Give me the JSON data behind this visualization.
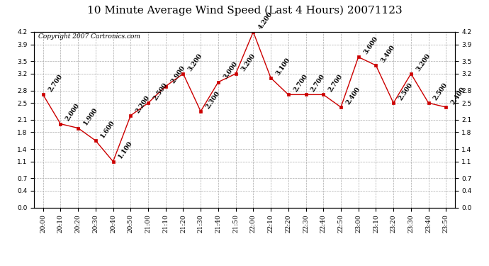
{
  "title": "10 Minute Average Wind Speed (Last 4 Hours) 20071123",
  "copyright": "Copyright 2007 Cartronics.com",
  "times": [
    "20:00",
    "20:10",
    "20:20",
    "20:30",
    "20:40",
    "20:50",
    "21:00",
    "21:10",
    "21:20",
    "21:30",
    "21:40",
    "21:50",
    "22:00",
    "22:10",
    "22:20",
    "22:30",
    "22:40",
    "22:50",
    "23:00",
    "23:10",
    "23:20",
    "23:30",
    "23:40",
    "23:50"
  ],
  "values": [
    2.7,
    2.0,
    1.9,
    1.6,
    1.1,
    2.2,
    2.5,
    2.9,
    3.2,
    2.3,
    3.0,
    3.2,
    4.2,
    3.1,
    2.7,
    2.7,
    2.7,
    2.4,
    3.6,
    3.4,
    2.5,
    3.2,
    2.5,
    2.4
  ],
  "ylim": [
    0.0,
    4.2
  ],
  "yticks": [
    0.0,
    0.4,
    0.7,
    1.1,
    1.4,
    1.8,
    2.1,
    2.5,
    2.8,
    3.2,
    3.5,
    3.9,
    4.2
  ],
  "line_color": "#cc0000",
  "marker_color": "#cc0000",
  "bg_color": "#ffffff",
  "plot_bg_color": "#ffffff",
  "grid_color": "#aaaaaa",
  "title_fontsize": 11,
  "label_fontsize": 6.5,
  "annotation_fontsize": 6.5,
  "copyright_fontsize": 6.5,
  "figwidth": 6.9,
  "figheight": 3.75,
  "dpi": 100
}
